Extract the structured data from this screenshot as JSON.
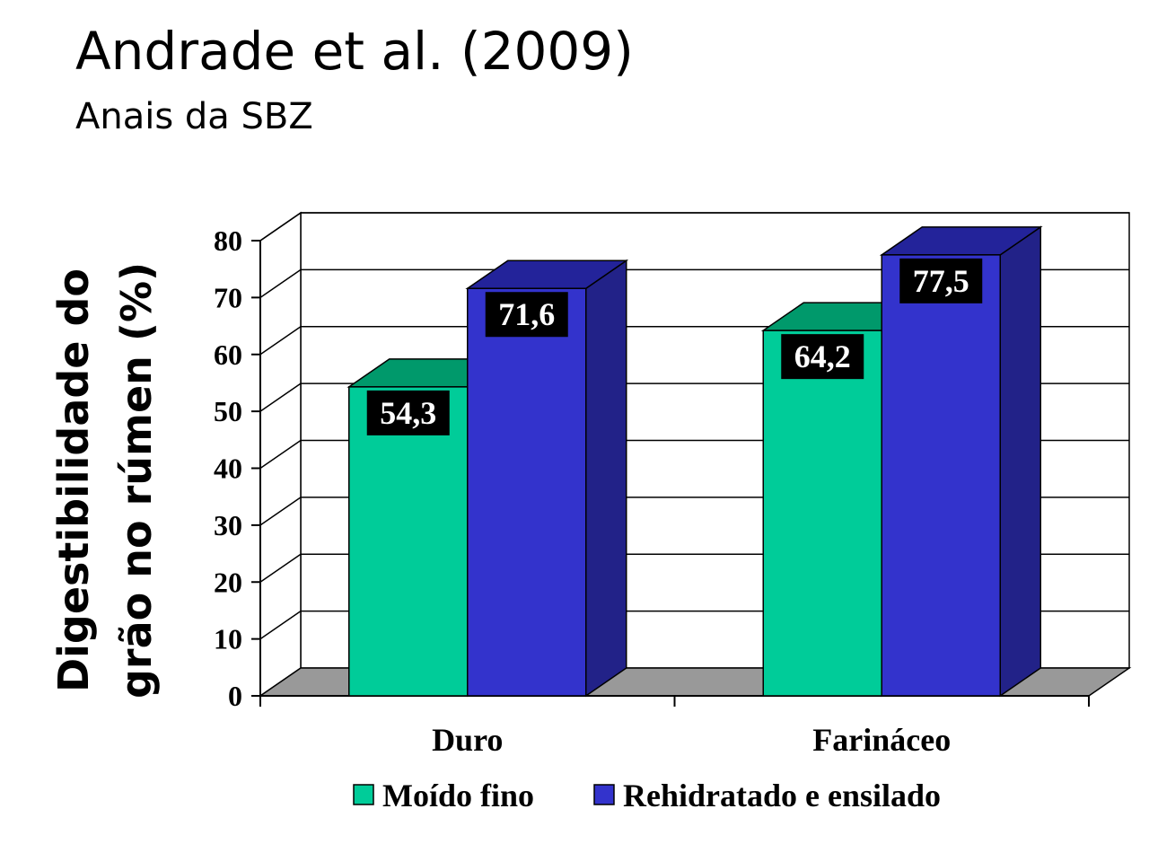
{
  "title": "Andrade et al. (2009)",
  "subtitle": "Anais da SBZ",
  "chart_data": {
    "type": "bar",
    "categories": [
      "Duro",
      "Farináceo"
    ],
    "series": [
      {
        "name": "Moído fino",
        "values": [
          54.3,
          64.2
        ],
        "labels": [
          "54,3",
          "64,2"
        ],
        "color": "#00CC99",
        "top_color": "#00996B",
        "side_color": "#009970"
      },
      {
        "name": "Rehidratado e ensilado",
        "values": [
          71.6,
          77.5
        ],
        "labels": [
          "71,6",
          "77,5"
        ],
        "color": "#3333CC",
        "top_color": "#23239A",
        "side_color": "#222288"
      }
    ],
    "ylabel_lines": [
      "Digestibilidade do",
      "grão no rúmen (%)"
    ],
    "ylim": [
      0,
      80
    ],
    "yticks": [
      0,
      10,
      20,
      30,
      40,
      50,
      60,
      70,
      80
    ],
    "legend_position": "bottom",
    "grid": true,
    "floor_color": "#999999"
  }
}
